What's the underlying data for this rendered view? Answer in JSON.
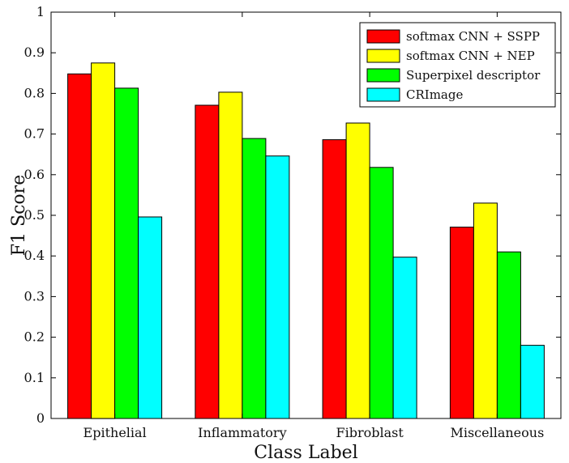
{
  "chart_data": {
    "type": "bar",
    "xlabel": "Class Label",
    "ylabel": "F1 Score",
    "ylim": [
      0,
      1
    ],
    "yticks": [
      "0",
      "0.1",
      "0.2",
      "0.3",
      "0.4",
      "0.5",
      "0.6",
      "0.7",
      "0.8",
      "0.9",
      "1"
    ],
    "categories": [
      "Epithelial",
      "Inflammatory",
      "Fibroblast",
      "Miscellaneous"
    ],
    "series": [
      {
        "name": "softmax CNN + SSPP",
        "color": "#ff0000",
        "values": [
          0.848,
          0.771,
          0.686,
          0.471
        ]
      },
      {
        "name": "softmax CNN + NEP",
        "color": "#ffff00",
        "values": [
          0.875,
          0.803,
          0.727,
          0.53
        ]
      },
      {
        "name": "Superpixel descriptor",
        "color": "#00ff00",
        "values": [
          0.813,
          0.689,
          0.618,
          0.41
        ]
      },
      {
        "name": "CRImage",
        "color": "#00ffff",
        "values": [
          0.496,
          0.646,
          0.397,
          0.18
        ]
      }
    ],
    "legend_position": "top-right",
    "grid": false
  }
}
